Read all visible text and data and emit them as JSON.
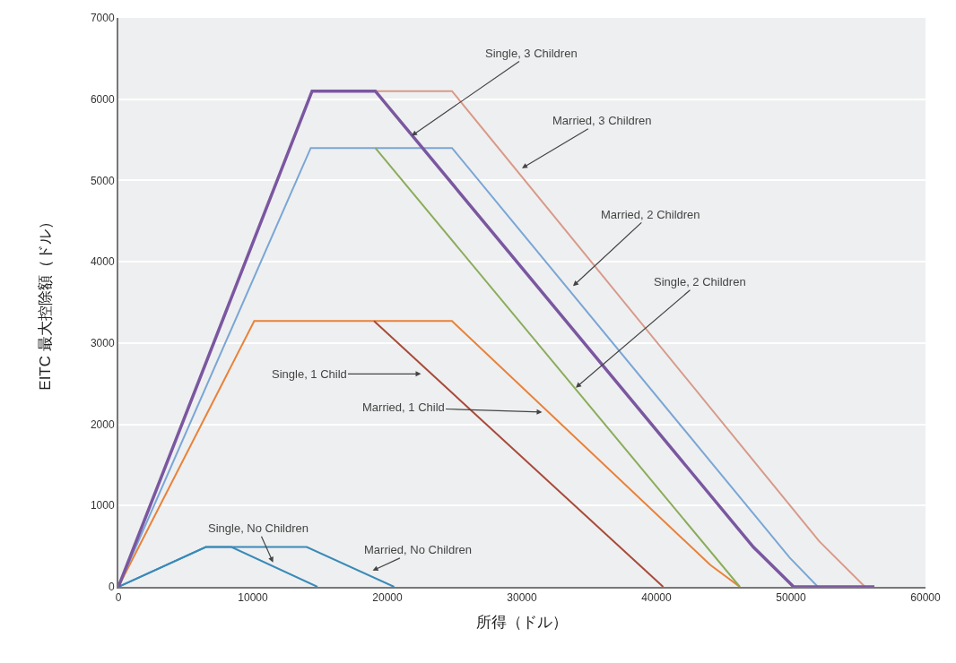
{
  "chart_data": {
    "type": "line",
    "xlabel": "所得（ドル）",
    "ylabel": "EITC 最大控除額（ドル）",
    "xlim": [
      0,
      60000
    ],
    "xticks": [
      0,
      10000,
      20000,
      30000,
      40000,
      50000,
      60000
    ],
    "ylim": [
      0,
      7000
    ],
    "yticks": [
      0,
      1000,
      2000,
      3000,
      4000,
      5000,
      6000,
      7000
    ],
    "grid": "y",
    "marker": "none",
    "line_style": "solid",
    "series": [
      {
        "color": "#3a8ab8",
        "x": [
          0,
          6500,
          14000,
          20500
        ],
        "values": [
          0,
          490,
          490,
          0
        ]
      },
      {
        "color": "#3a8ab8",
        "x": [
          0,
          6500,
          8400,
          14800
        ],
        "values": [
          0,
          490,
          490,
          0
        ]
      },
      {
        "color": "#e8823a",
        "x": [
          0,
          10100,
          24800,
          44000,
          46200
        ],
        "values": [
          0,
          3270,
          3270,
          270,
          0
        ]
      },
      {
        "color": "#a84a3a",
        "x": [
          19000,
          40500
        ],
        "values": [
          3270,
          0
        ]
      },
      {
        "color": "#7aa6d6",
        "x": [
          0,
          14300,
          24800,
          49900,
          52000
        ],
        "values": [
          0,
          5400,
          5400,
          360,
          0
        ]
      },
      {
        "color": "#8aac5a",
        "x": [
          19100,
          46200
        ],
        "values": [
          5400,
          0
        ]
      },
      {
        "color": "#d89a8a",
        "x": [
          19100,
          24800,
          52100,
          55500
        ],
        "values": [
          6100,
          6100,
          560,
          0
        ]
      },
      {
        "color": "#7a57a0",
        "x": [
          0,
          14400,
          19100,
          47200,
          50200,
          56200
        ],
        "values": [
          0,
          6100,
          6100,
          490,
          0,
          0
        ]
      }
    ],
    "annotations": [
      {
        "text": "Single, 3 Children",
        "x": 21800,
        "y": 5550
      },
      {
        "text": "Married, 3 Children",
        "x": 30000,
        "y": 5150
      },
      {
        "text": "Married, 2 Children",
        "x": 33800,
        "y": 3700
      },
      {
        "text": "Single, 2 Children",
        "x": 34000,
        "y": 2450
      },
      {
        "text": "Single, 1 Child",
        "x": 22500,
        "y": 2620
      },
      {
        "text": "Married, 1 Child",
        "x": 31500,
        "y": 2150
      },
      {
        "text": "Single, No Children",
        "x": 11500,
        "y": 300
      },
      {
        "text": "Married, No Children",
        "x": 18900,
        "y": 200
      }
    ]
  }
}
